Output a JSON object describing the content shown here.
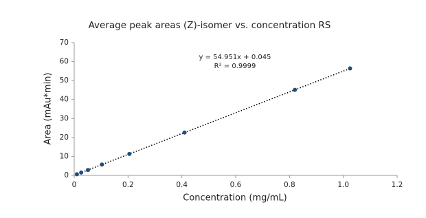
{
  "chart_data": {
    "type": "scatter",
    "title": "Average peak areas (Z)-isomer vs. concentration RS",
    "x_label": "Concentration (mg/mL)",
    "y_label": "Area (mAu*min)",
    "x": [
      0.01,
      0.026,
      0.051,
      0.103,
      0.205,
      0.41,
      0.82,
      1.025
    ],
    "series": [
      {
        "color": "#1f4e79",
        "values": [
          0.6,
          1.5,
          2.8,
          5.7,
          11.3,
          22.6,
          45.1,
          56.4
        ]
      }
    ],
    "trendline": {
      "equation": "y = 54.951x + 0.045",
      "r_squared": "R² = 0.9999",
      "slope": 54.951,
      "intercept": 0.045,
      "color": "#000000"
    },
    "xlim": [
      0,
      1.2
    ],
    "xticks": [
      0,
      0.2,
      0.4,
      0.6,
      0.8,
      {
        "value": 1.0,
        "label": "1.0"
      },
      1.2
    ],
    "ylim": [
      0,
      70
    ],
    "yticks": [
      0,
      10,
      20,
      30,
      40,
      50,
      60,
      70
    ],
    "grid": false
  }
}
